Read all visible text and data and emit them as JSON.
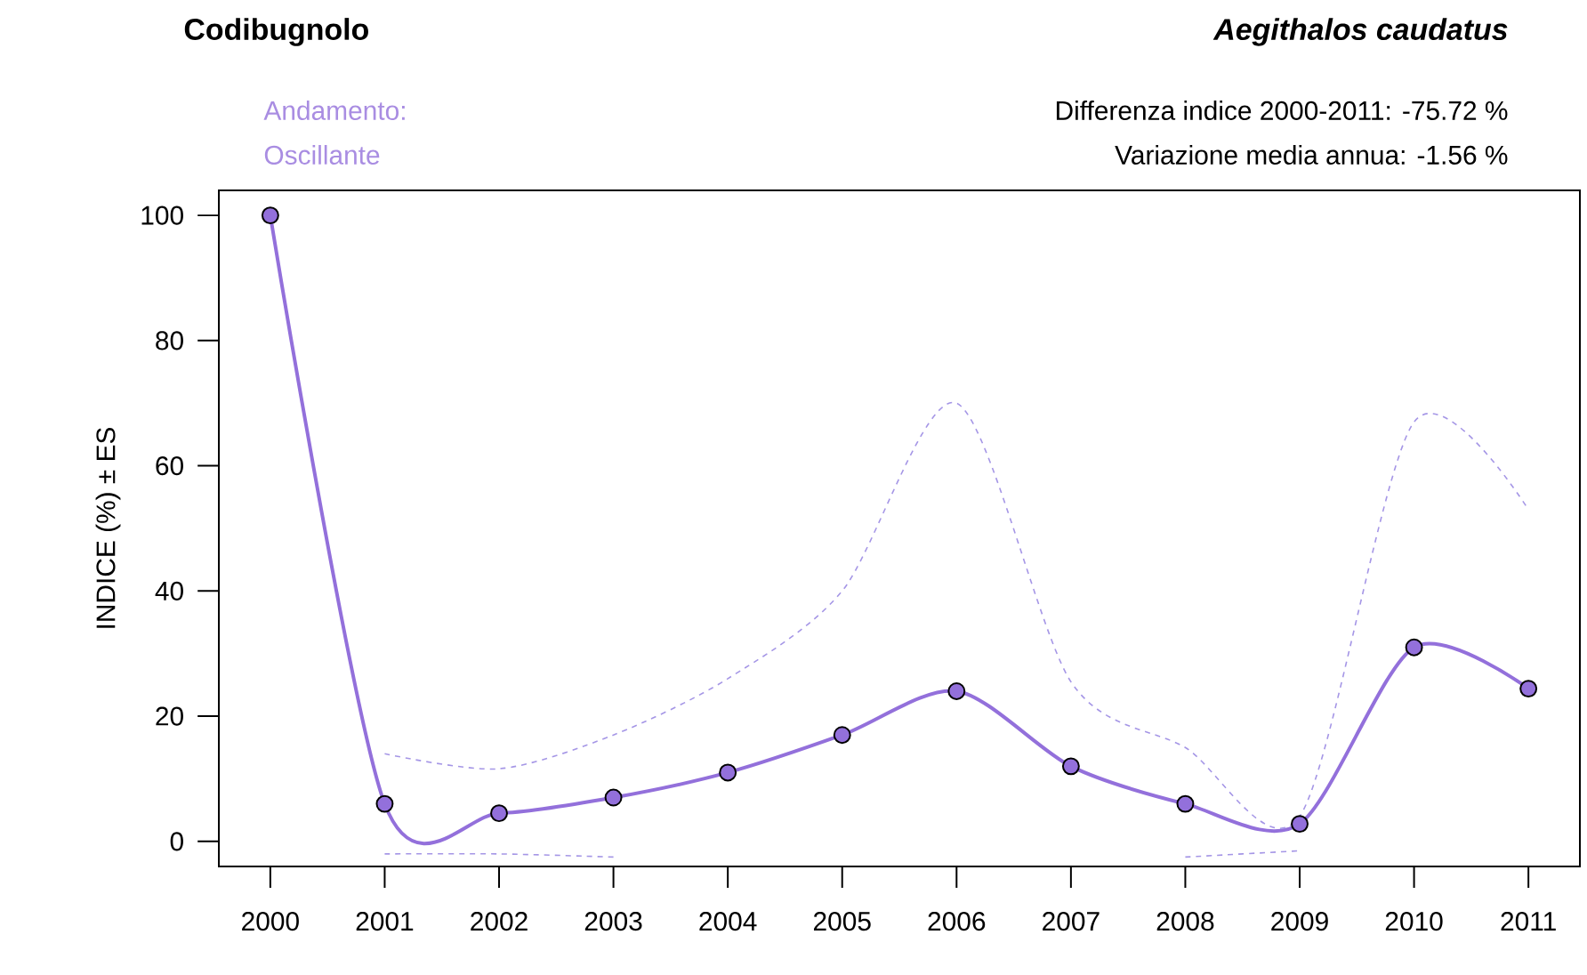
{
  "chart_data": {
    "type": "line",
    "title": "Codibugnolo",
    "subtitle": "Aegithalos caudatus",
    "ylabel": "INDICE (%) ± ES",
    "annotations": [
      "Andamento:",
      "Oscillante",
      "Differenza indice 2000-2011:   -75.72 %",
      "Variazione media annua:   -1.56 %"
    ],
    "x": [
      2000,
      2001,
      2002,
      2003,
      2004,
      2005,
      2006,
      2007,
      2008,
      2009,
      2010,
      2011
    ],
    "series": [
      {
        "color": "#9370db",
        "values": [
          100,
          6,
          4.5,
          7,
          11,
          17,
          24,
          12,
          6,
          2.8,
          31,
          24.4
        ]
      },
      {
        "color": "#a596e6",
        "line_style": "dashed",
        "marker": "none",
        "x": [
          2001,
          2002,
          2003,
          2004,
          2005,
          2006,
          2007,
          2008,
          2009,
          2010,
          2011
        ],
        "values": [
          14,
          11.6,
          17,
          26,
          40,
          70,
          25.5,
          15,
          4,
          67,
          53
        ]
      },
      {
        "color": "#a596e6",
        "line_style": "dashed",
        "marker": "none",
        "x": [
          2001,
          2002,
          2003,
          2004,
          2005,
          2006,
          2007,
          2008,
          2009
        ],
        "values": [
          -2,
          -2,
          -2.5,
          null,
          null,
          null,
          null,
          -2.5,
          -1.5
        ]
      }
    ],
    "marker": "circle",
    "line_style": "solid",
    "xlim": [
      1999.55,
      2011.45
    ],
    "ylim": [
      -4,
      104
    ],
    "xticks": [
      2000,
      2001,
      2002,
      2003,
      2004,
      2005,
      2006,
      2007,
      2008,
      2009,
      2010,
      2011
    ],
    "yticks": [
      0,
      20,
      40,
      60,
      80,
      100
    ]
  }
}
